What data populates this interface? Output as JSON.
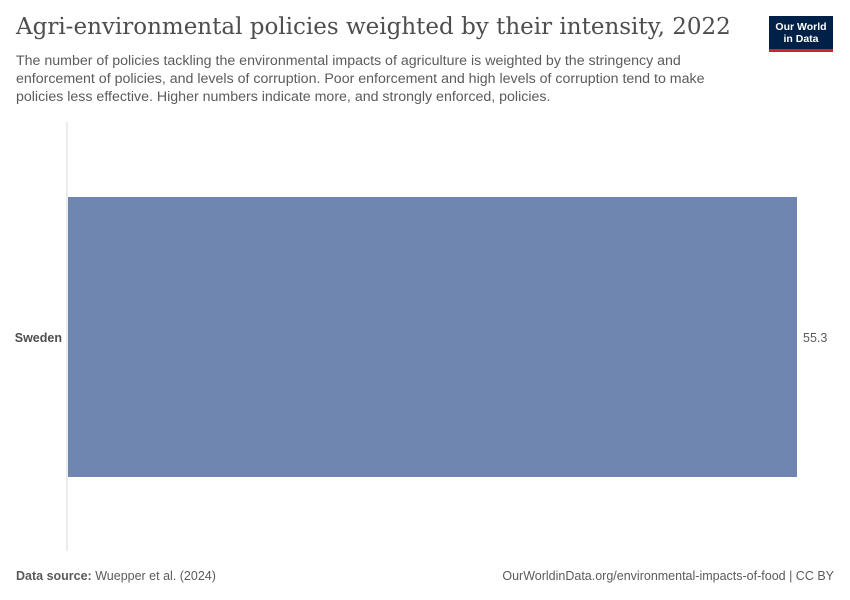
{
  "header": {
    "title": "Agri-environmental policies weighted by their intensity, 2022",
    "subtitle": "The number of policies tackling the environmental impacts of agriculture is weighted by the stringency and enforcement of policies, and levels of corruption. Poor enforcement and high levels of corruption tend to make policies less effective. Higher numbers indicate more, and strongly enforced, policies.",
    "logo_line1": "Our World",
    "logo_line2": "in Data"
  },
  "chart_data": {
    "type": "bar",
    "orientation": "horizontal",
    "categories": [
      "Sweden"
    ],
    "values": [
      55.3
    ],
    "value_labels": [
      "55.3"
    ],
    "bar_color": "#6f87b0",
    "xlim": [
      0,
      55.3
    ]
  },
  "footer": {
    "source_label": "Data source:",
    "source_value": "Wuepper et al. (2024)",
    "right_text": "OurWorldinData.org/environmental-impacts-of-food | CC BY"
  }
}
